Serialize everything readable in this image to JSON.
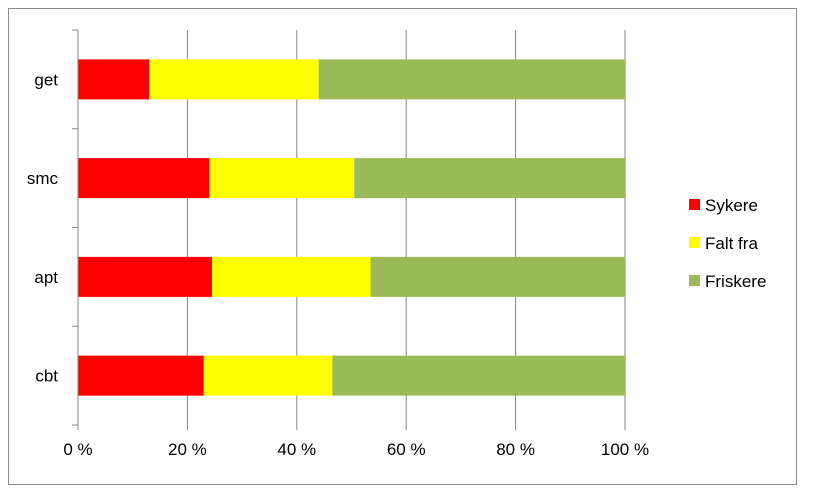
{
  "chart_data": {
    "type": "bar",
    "orientation": "horizontal",
    "stacked": "percent",
    "categories": [
      "get",
      "smc",
      "apt",
      "cbt"
    ],
    "series": [
      {
        "name": "Sykere",
        "color": "#ff0000",
        "values": [
          13,
          24,
          24.5,
          23
        ]
      },
      {
        "name": "Falt fra",
        "color": "#ffff00",
        "values": [
          31,
          26.5,
          29,
          23.5
        ]
      },
      {
        "name": "Friskere",
        "color": "#9bbb59",
        "values": [
          56,
          49.5,
          46.5,
          53.5
        ]
      }
    ],
    "xlim": [
      0,
      100
    ],
    "x_ticks": [
      "0 %",
      "20 %",
      "40 %",
      "60 %",
      "80 %",
      "100 %"
    ],
    "x_tick_values": [
      0,
      20,
      40,
      60,
      80,
      100
    ],
    "grid": "vertical",
    "legend_position": "right",
    "title": "",
    "xlabel": "",
    "ylabel": ""
  }
}
